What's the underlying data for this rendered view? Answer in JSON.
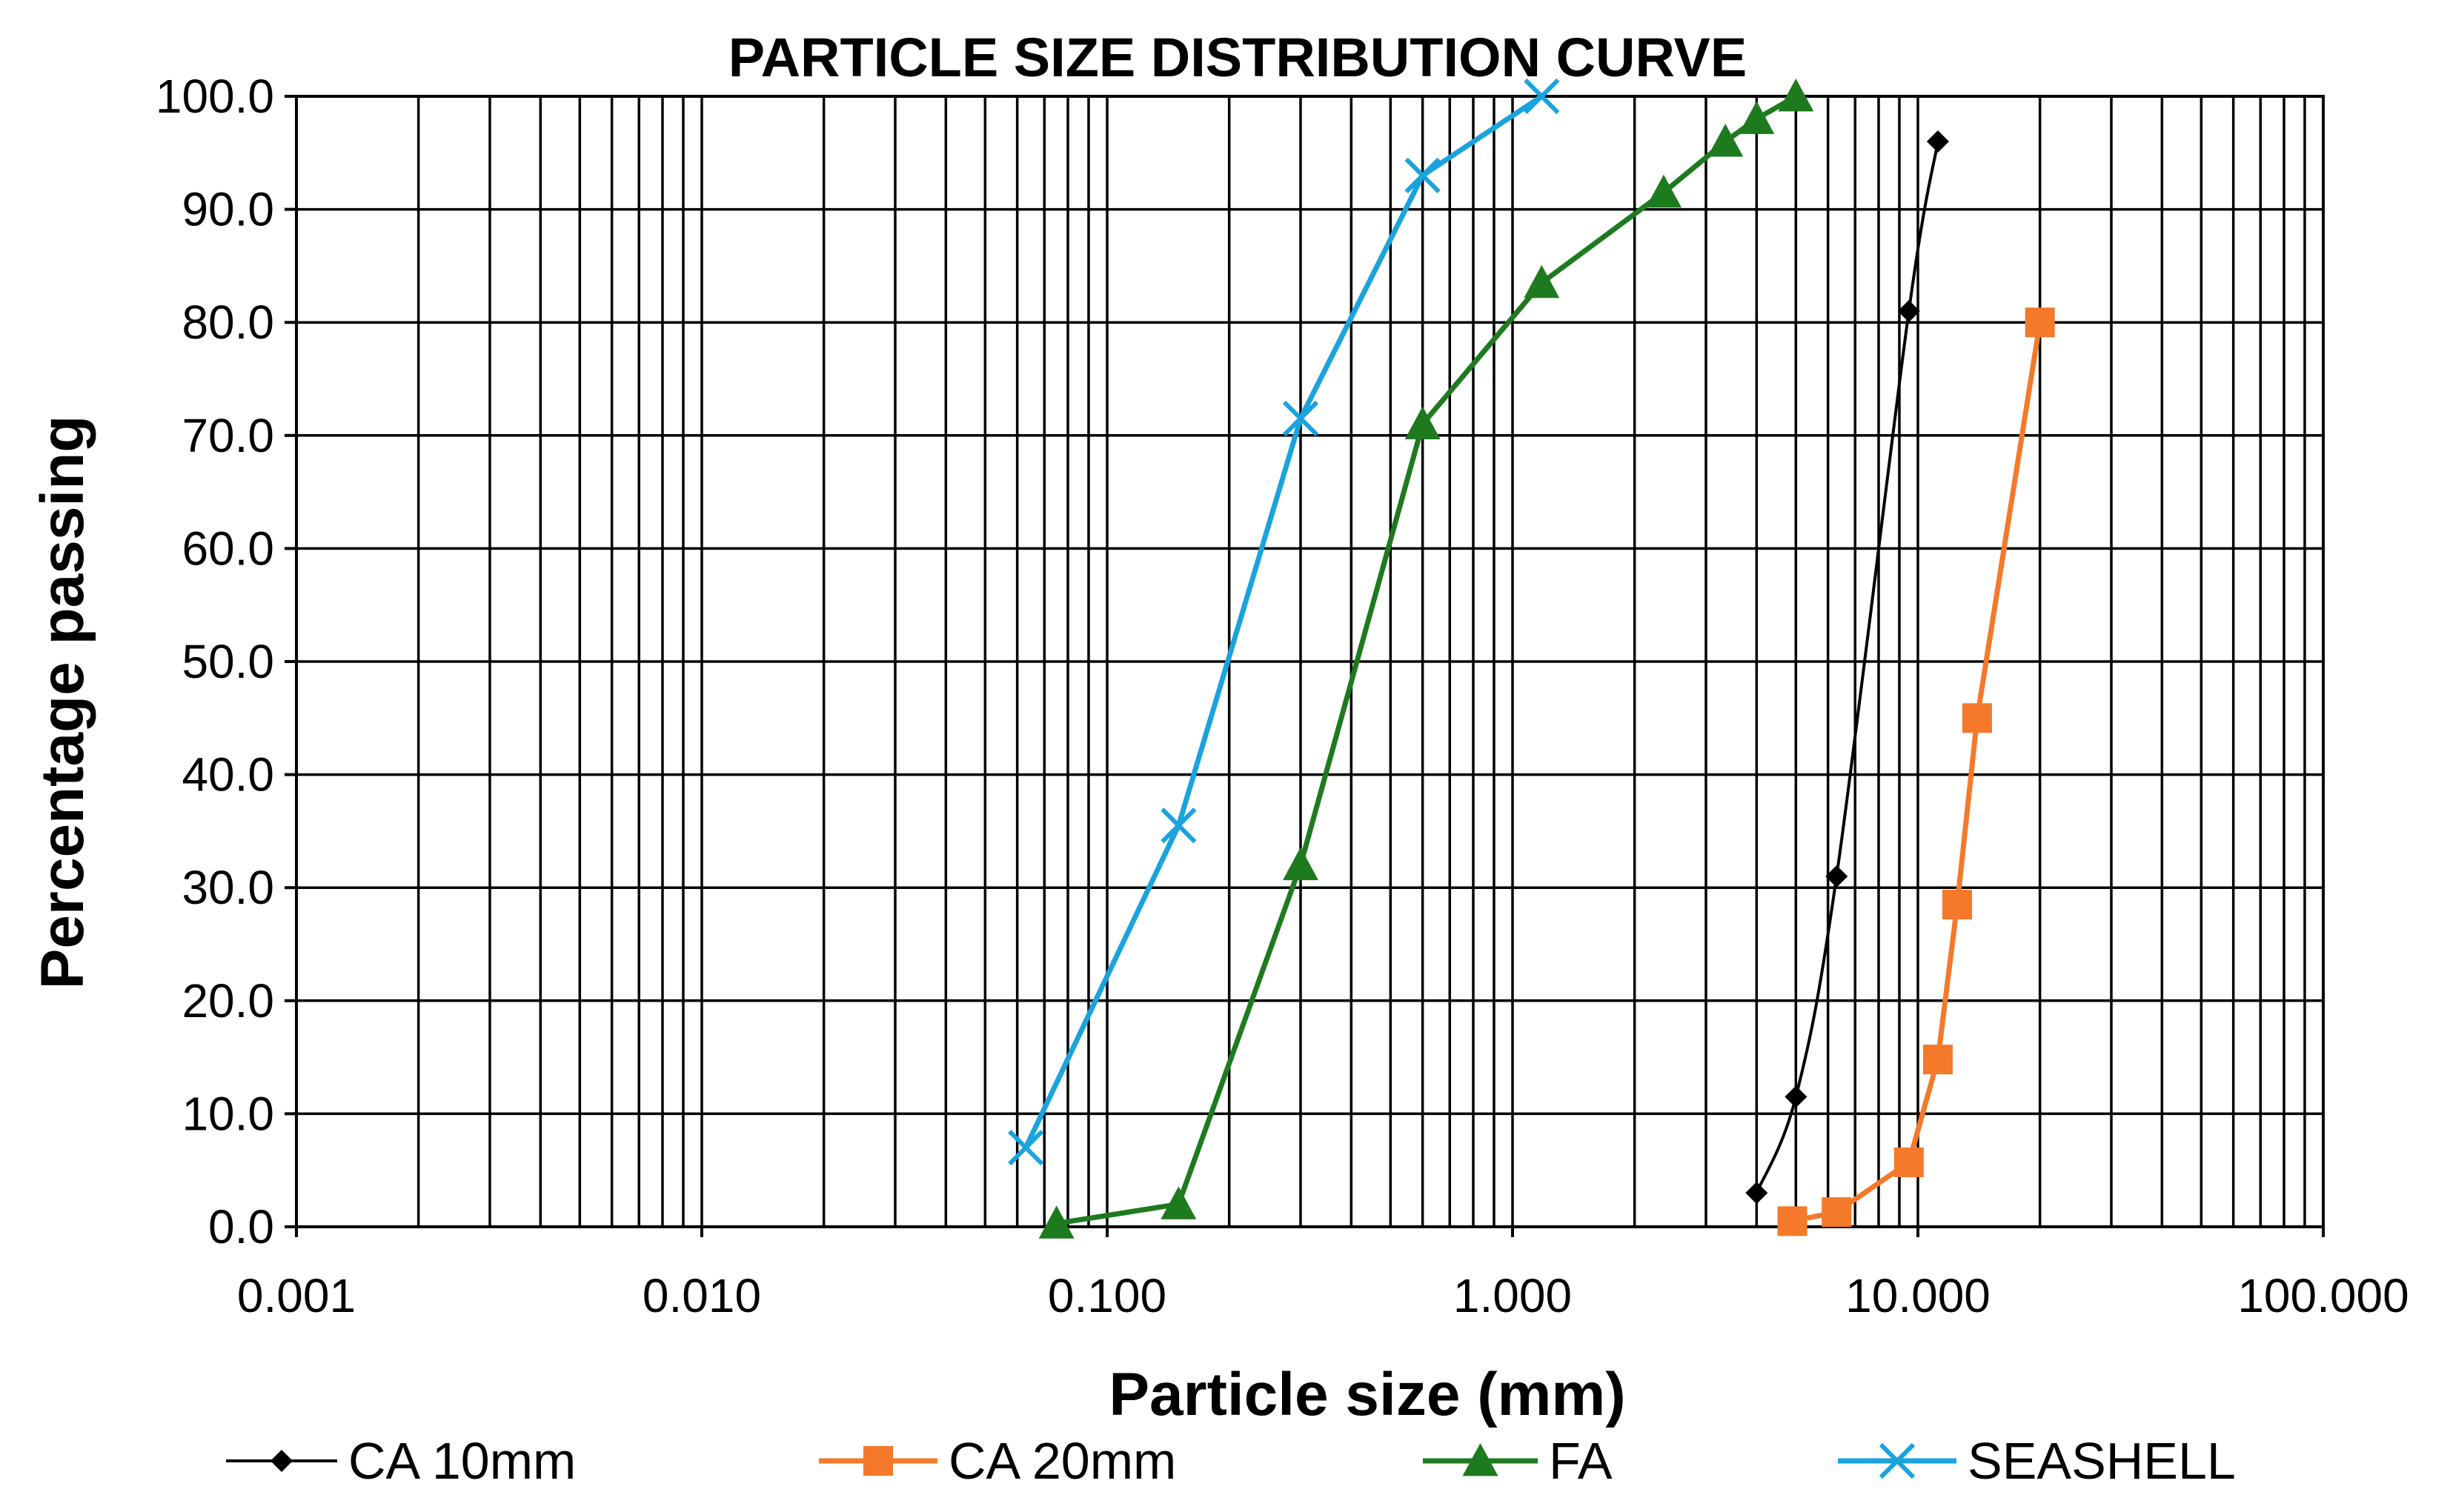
{
  "chart_data": {
    "type": "line",
    "title": "PARTICLE SIZE DISTRIBUTION CURVE",
    "xlabel": "Particle size (mm)",
    "ylabel": "Percentage passing",
    "x_scale": "log",
    "xlim": [
      0.001,
      100
    ],
    "ylim": [
      0,
      100
    ],
    "grid": true,
    "legend_position": "bottom",
    "x_tick_labels": [
      "0.001",
      "0.010",
      "0.100",
      "1.000",
      "10.000",
      "100.000"
    ],
    "y_tick_labels": [
      "0.0",
      "10.0",
      "20.0",
      "30.0",
      "40.0",
      "50.0",
      "60.0",
      "70.0",
      "80.0",
      "90.0",
      "100.0"
    ],
    "series": [
      {
        "name": "CA 10mm",
        "color": "#000000",
        "marker": "diamond",
        "smooth": true,
        "x": [
          4.0,
          5.0,
          6.3,
          9.5,
          11.2
        ],
        "y": [
          3.0,
          11.5,
          31.0,
          81.0,
          96.0
        ]
      },
      {
        "name": "CA 20mm",
        "color": "#F4792A",
        "marker": "square",
        "smooth": false,
        "x": [
          4.9,
          6.3,
          9.5,
          11.2,
          12.5,
          14.0,
          20.0
        ],
        "y": [
          0.5,
          1.3,
          5.7,
          14.8,
          28.5,
          45.0,
          80.0
        ]
      },
      {
        "name": "FA",
        "color": "#1E7A1E",
        "marker": "triangle",
        "smooth": false,
        "x": [
          0.075,
          0.15,
          0.3,
          0.6,
          1.18,
          2.36,
          3.35,
          4.0,
          5.0
        ],
        "y": [
          0.3,
          2.0,
          32.0,
          71.0,
          83.5,
          91.5,
          96.0,
          98.0,
          100.0
        ]
      },
      {
        "name": "SEASHELL",
        "color": "#1AA3DD",
        "marker": "x",
        "smooth": false,
        "x": [
          0.063,
          0.15,
          0.3,
          0.6,
          1.18
        ],
        "y": [
          7.0,
          35.5,
          71.5,
          93.0,
          100.0
        ]
      }
    ]
  }
}
